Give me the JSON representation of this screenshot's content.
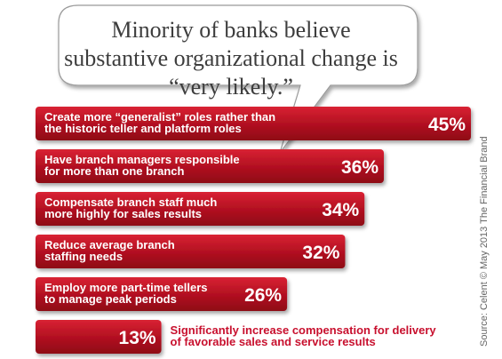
{
  "callout": "Minority of banks believe substantive organizational change is “very likely.”",
  "source": "Source: Celent © May 2013 The Financial Brand",
  "chart_data": {
    "type": "bar",
    "orientation": "horizontal",
    "title": "Minority of banks believe substantive organizational change is “very likely.”",
    "categories": [
      "Create more “generalist” roles rather than the historic teller and platform roles",
      "Have branch managers responsible for more than one branch",
      "Compensate branch staff much more highly for sales results",
      "Reduce average branch staffing needs",
      "Employ more part-time tellers to manage peak periods",
      "Significantly increase compensation for delivery of favorable sales and service results"
    ],
    "values": [
      45,
      36,
      34,
      32,
      26,
      13
    ],
    "value_labels": [
      "45%",
      "36%",
      "34%",
      "32%",
      "26%",
      "13%"
    ],
    "label_lines": [
      [
        "Create more “generalist” roles rather than",
        "the historic teller and platform roles"
      ],
      [
        "Have branch managers responsible",
        "for more than one branch"
      ],
      [
        "Compensate branch staff much",
        "more highly for sales results"
      ],
      [
        "Reduce average branch",
        "staffing needs"
      ],
      [
        "Employ more part-time tellers",
        "to manage peak periods"
      ],
      [
        "Significantly increase compensation for delivery",
        "of favorable sales and service results"
      ]
    ],
    "bar_color": "#c8102e",
    "outside_label_color": "#c8102e",
    "value_color": "#ffffff",
    "xlim": [
      0,
      45
    ],
    "grid": false,
    "legend": false
  }
}
